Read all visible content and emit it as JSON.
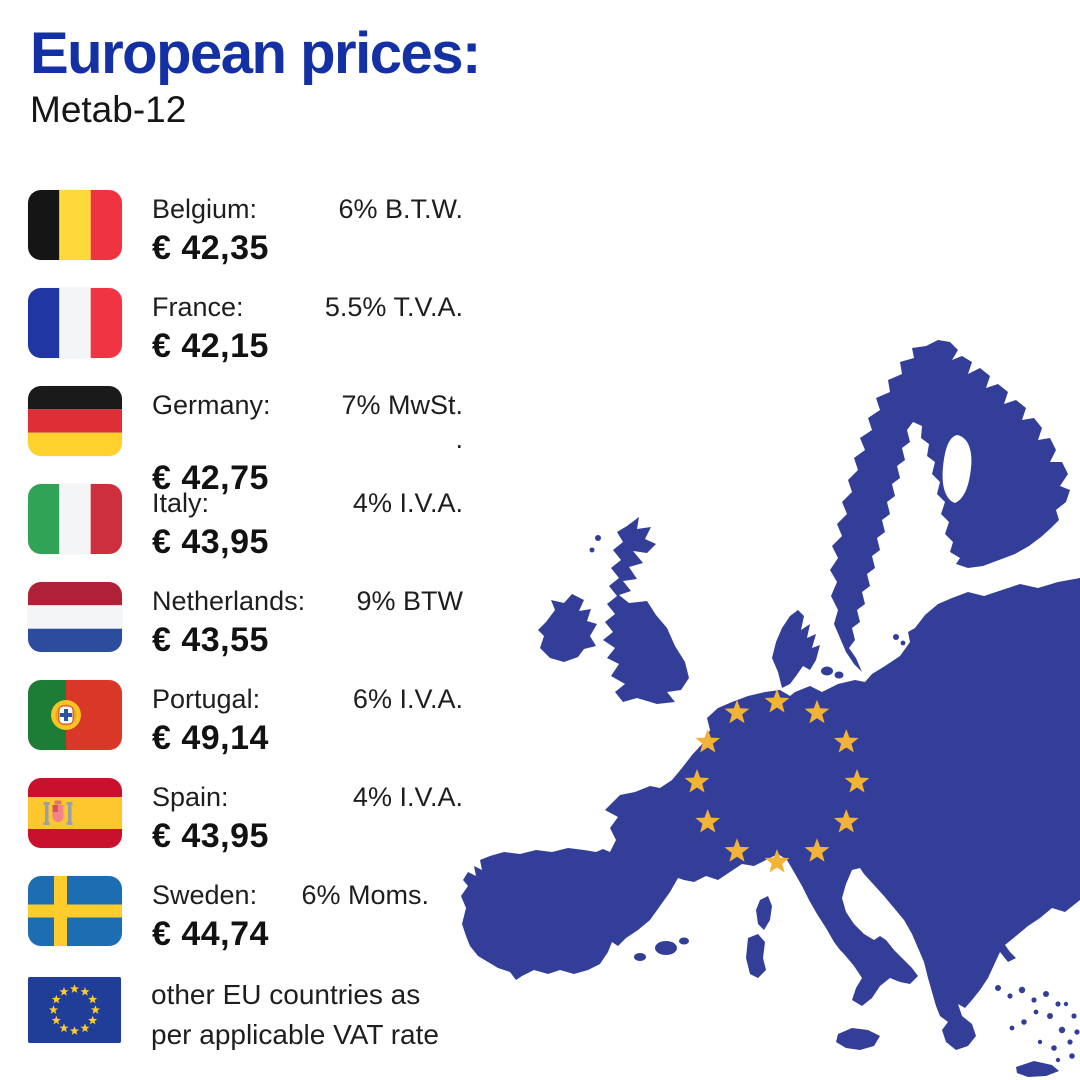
{
  "header": {
    "title": "European prices:",
    "subtitle": "Metab-12"
  },
  "countries": [
    {
      "id": "belgium",
      "name": "Belgium:",
      "vat": "6% B.T.W.",
      "price": "€ 42,35"
    },
    {
      "id": "france",
      "name": "France:",
      "vat": "5.5% T.V.A.",
      "price": "€ 42,15"
    },
    {
      "id": "germany",
      "name": "Germany:",
      "vat": "7% MwSt.",
      "vat_line2": ".",
      "price": "€ 42,75"
    },
    {
      "id": "italy",
      "name": "Italy:",
      "vat": "4% I.V.A.",
      "price": "€ 43,95"
    },
    {
      "id": "netherlands",
      "name": "Netherlands:",
      "vat": "9% BTW",
      "price": "€ 43,55"
    },
    {
      "id": "portugal",
      "name": "Portugal:",
      "vat": "6% I.V.A.",
      "price": "€ 49,14"
    },
    {
      "id": "spain",
      "name": "Spain:",
      "vat": "4% I.V.A.",
      "price": "€ 43,95"
    },
    {
      "id": "sweden",
      "name": "Sweden:",
      "vat": "6% Moms.",
      "price": "€ 44,74"
    }
  ],
  "footer": {
    "line1": "other EU countries as",
    "line2": "per applicable VAT rate"
  },
  "map": {
    "region": "Europe",
    "fill": "#333E99",
    "star_color": "#F2B338",
    "star_count": 12
  },
  "colors": {
    "title_blue": "#1331A4",
    "text": "#1A1A1A",
    "background": "#FFFFFF",
    "eu_flag_blue": "#203D98",
    "eu_flag_star": "#FFCC2E",
    "flag_palettes": {
      "belgium": [
        "#151515",
        "#FFD93B",
        "#EF3340"
      ],
      "france": [
        "#2036A3",
        "#F4F5F7",
        "#F03444"
      ],
      "germany": [
        "#1A1A1A",
        "#DE2E36",
        "#FFD12C"
      ],
      "italy": [
        "#31A356",
        "#F4F5F7",
        "#CE2F3F"
      ],
      "netherlands": [
        "#B02036",
        "#F4F5F7",
        "#2C4C9E"
      ],
      "portugal": [
        "#1D7D36",
        "#D93829",
        "#F7C325"
      ],
      "spain": [
        "#C9112E",
        "#FFC72E",
        "#98A0A8"
      ],
      "sweden": [
        "#1D6DB2",
        "#FFCD2B"
      ]
    }
  }
}
